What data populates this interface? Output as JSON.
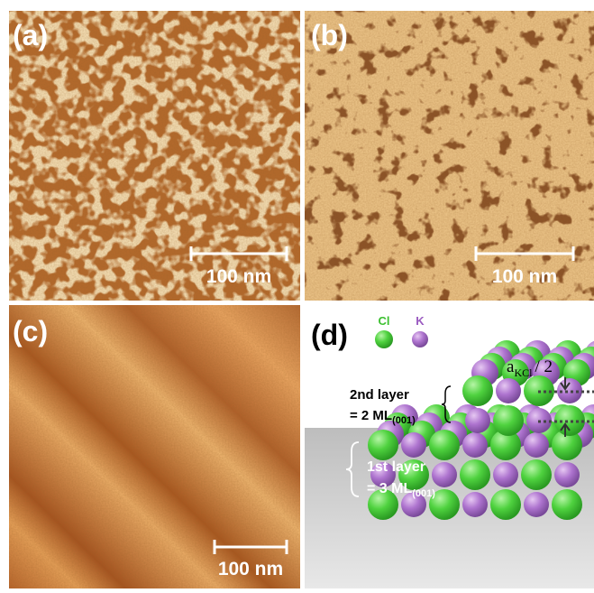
{
  "panels": [
    {
      "label": "(a)",
      "scale_bar": "100 nm"
    },
    {
      "label": "(b)",
      "scale_bar": "100 nm"
    },
    {
      "label": "(c)",
      "scale_bar": "100 nm"
    },
    {
      "label": "(d)"
    }
  ],
  "schematic": {
    "legend": [
      {
        "name": "Cl"
      },
      {
        "name": "K"
      }
    ],
    "lattice_label": {
      "symbol": "a",
      "subscript": "KCl",
      "suffix": "/ 2"
    },
    "layers": [
      {
        "name": "2nd layer",
        "thickness": "= 2 ML",
        "subscript": "(001)"
      },
      {
        "name": "1st layer",
        "thickness": "= 3 ML",
        "subscript": "(001)"
      }
    ]
  }
}
